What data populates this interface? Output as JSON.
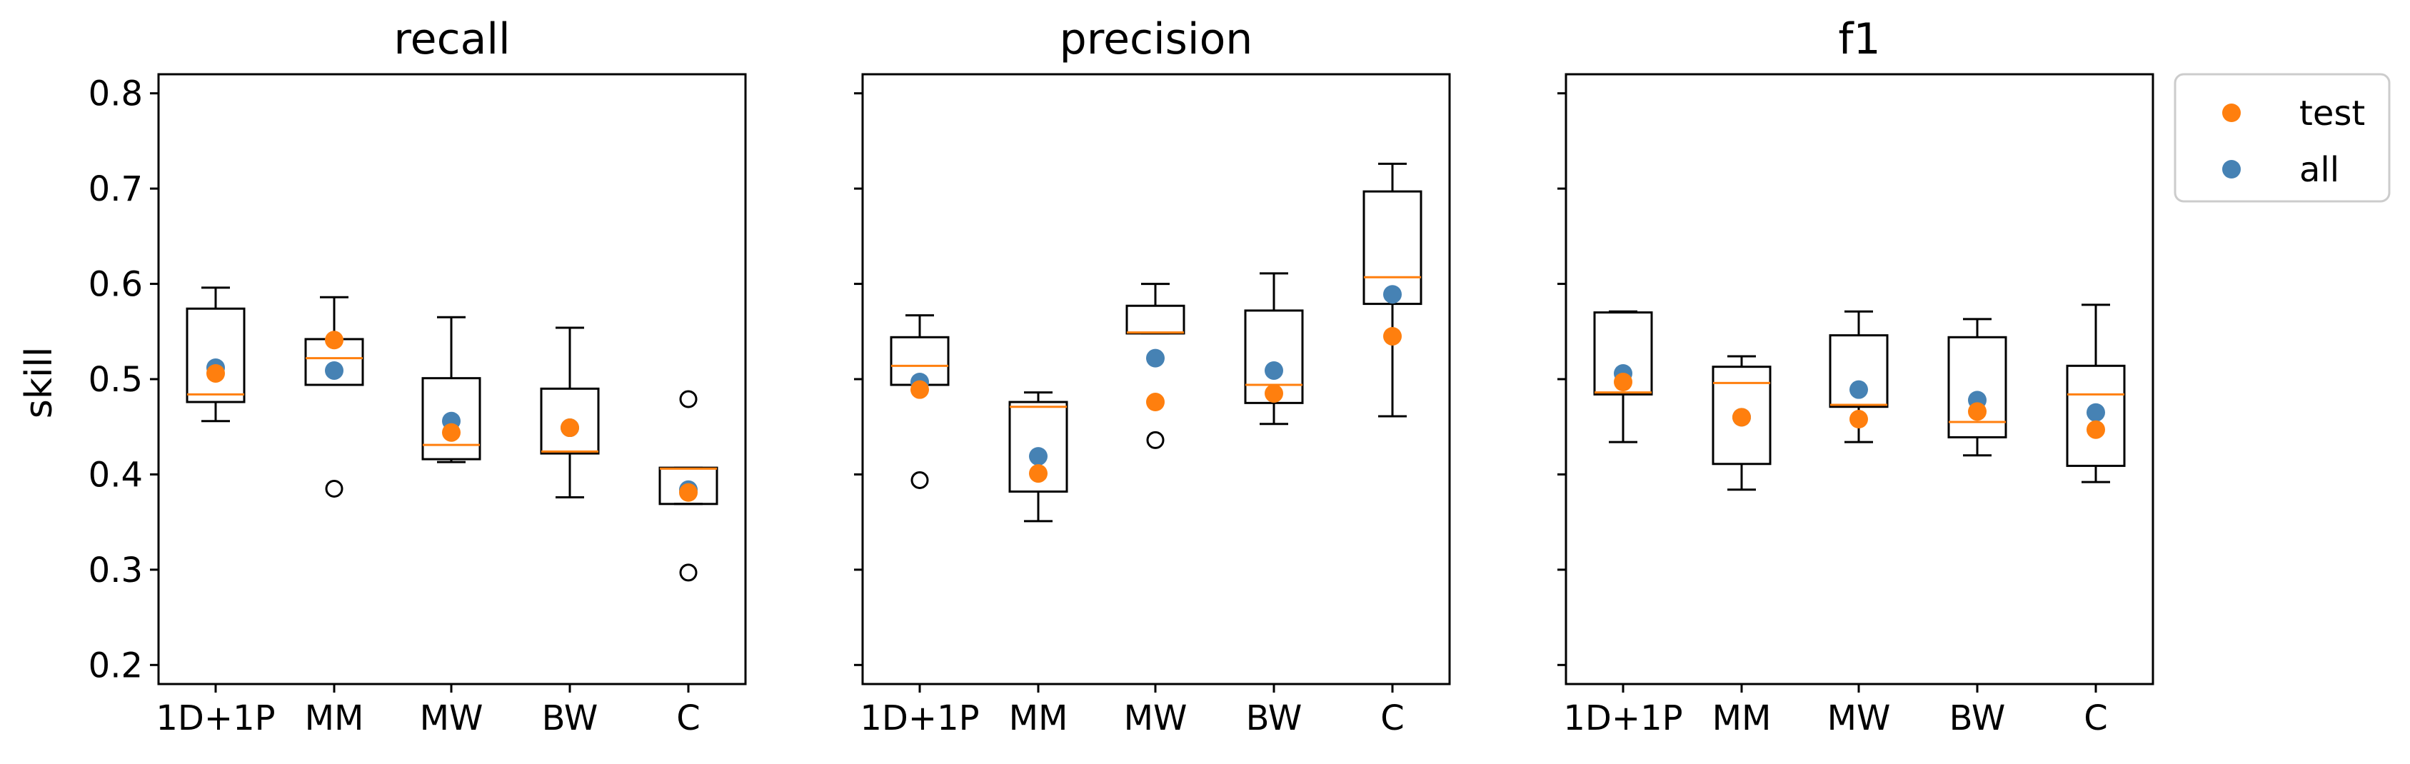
{
  "chart_data": {
    "type": "box",
    "ylabel": "skill",
    "ylim": [
      0.18,
      0.82
    ],
    "yticks": [
      0.2,
      0.3,
      0.4,
      0.5,
      0.6,
      0.7,
      0.8
    ],
    "ytick_labels": [
      "0.2",
      "0.3",
      "0.4",
      "0.5",
      "0.6",
      "0.7",
      "0.8"
    ],
    "categories": [
      "1D+1P",
      "MM",
      "MW",
      "BW",
      "C"
    ],
    "colors": {
      "test": "#ff7f0e",
      "all": "#4682b4",
      "median": "#ff7f0e",
      "box": "#000000"
    },
    "legend": {
      "placement": "outside-top-right",
      "entries": [
        {
          "label": "test",
          "color": "#ff7f0e"
        },
        {
          "label": "all",
          "color": "#4682b4"
        }
      ]
    },
    "panels": [
      {
        "title": "recall",
        "boxes": [
          {
            "whislo": 0.456,
            "q1": 0.476,
            "med": 0.484,
            "q3": 0.574,
            "whishi": 0.596,
            "fliers": []
          },
          {
            "whislo": 0.494,
            "q1": 0.494,
            "med": 0.522,
            "q3": 0.542,
            "whishi": 0.586,
            "fliers": [
              0.385
            ]
          },
          {
            "whislo": 0.413,
            "q1": 0.416,
            "med": 0.431,
            "q3": 0.501,
            "whishi": 0.565,
            "fliers": []
          },
          {
            "whislo": 0.376,
            "q1": 0.422,
            "med": 0.424,
            "q3": 0.49,
            "whishi": 0.554,
            "fliers": []
          },
          {
            "whislo": 0.369,
            "q1": 0.369,
            "med": 0.406,
            "q3": 0.407,
            "whishi": 0.407,
            "fliers": [
              0.297,
              0.479
            ]
          }
        ],
        "test": [
          0.506,
          0.541,
          0.444,
          0.449,
          0.381
        ],
        "all": [
          0.512,
          0.509,
          0.456,
          0.449,
          0.384
        ]
      },
      {
        "title": "precision",
        "boxes": [
          {
            "whislo": 0.494,
            "q1": 0.494,
            "med": 0.514,
            "q3": 0.544,
            "whishi": 0.567,
            "fliers": [
              0.394
            ]
          },
          {
            "whislo": 0.351,
            "q1": 0.382,
            "med": 0.471,
            "q3": 0.476,
            "whishi": 0.486,
            "fliers": []
          },
          {
            "whislo": 0.548,
            "q1": 0.548,
            "med": 0.549,
            "q3": 0.577,
            "whishi": 0.6,
            "fliers": [
              0.436
            ]
          },
          {
            "whislo": 0.453,
            "q1": 0.475,
            "med": 0.494,
            "q3": 0.572,
            "whishi": 0.611,
            "fliers": []
          },
          {
            "whislo": 0.461,
            "q1": 0.579,
            "med": 0.607,
            "q3": 0.697,
            "whishi": 0.726,
            "fliers": []
          }
        ],
        "test": [
          0.489,
          0.401,
          0.476,
          0.485,
          0.545
        ],
        "all": [
          0.497,
          0.419,
          0.522,
          0.509,
          0.589
        ]
      },
      {
        "title": "f1",
        "boxes": [
          {
            "whislo": 0.434,
            "q1": 0.484,
            "med": 0.486,
            "q3": 0.57,
            "whishi": 0.571,
            "fliers": []
          },
          {
            "whislo": 0.384,
            "q1": 0.411,
            "med": 0.496,
            "q3": 0.513,
            "whishi": 0.524,
            "fliers": []
          },
          {
            "whislo": 0.434,
            "q1": 0.471,
            "med": 0.473,
            "q3": 0.546,
            "whishi": 0.571,
            "fliers": []
          },
          {
            "whislo": 0.42,
            "q1": 0.439,
            "med": 0.455,
            "q3": 0.544,
            "whishi": 0.563,
            "fliers": []
          },
          {
            "whislo": 0.392,
            "q1": 0.409,
            "med": 0.484,
            "q3": 0.514,
            "whishi": 0.578,
            "fliers": []
          }
        ],
        "test": [
          0.497,
          0.46,
          0.458,
          0.466,
          0.447
        ],
        "all": [
          0.506,
          0.46,
          0.489,
          0.478,
          0.465
        ]
      }
    ]
  }
}
